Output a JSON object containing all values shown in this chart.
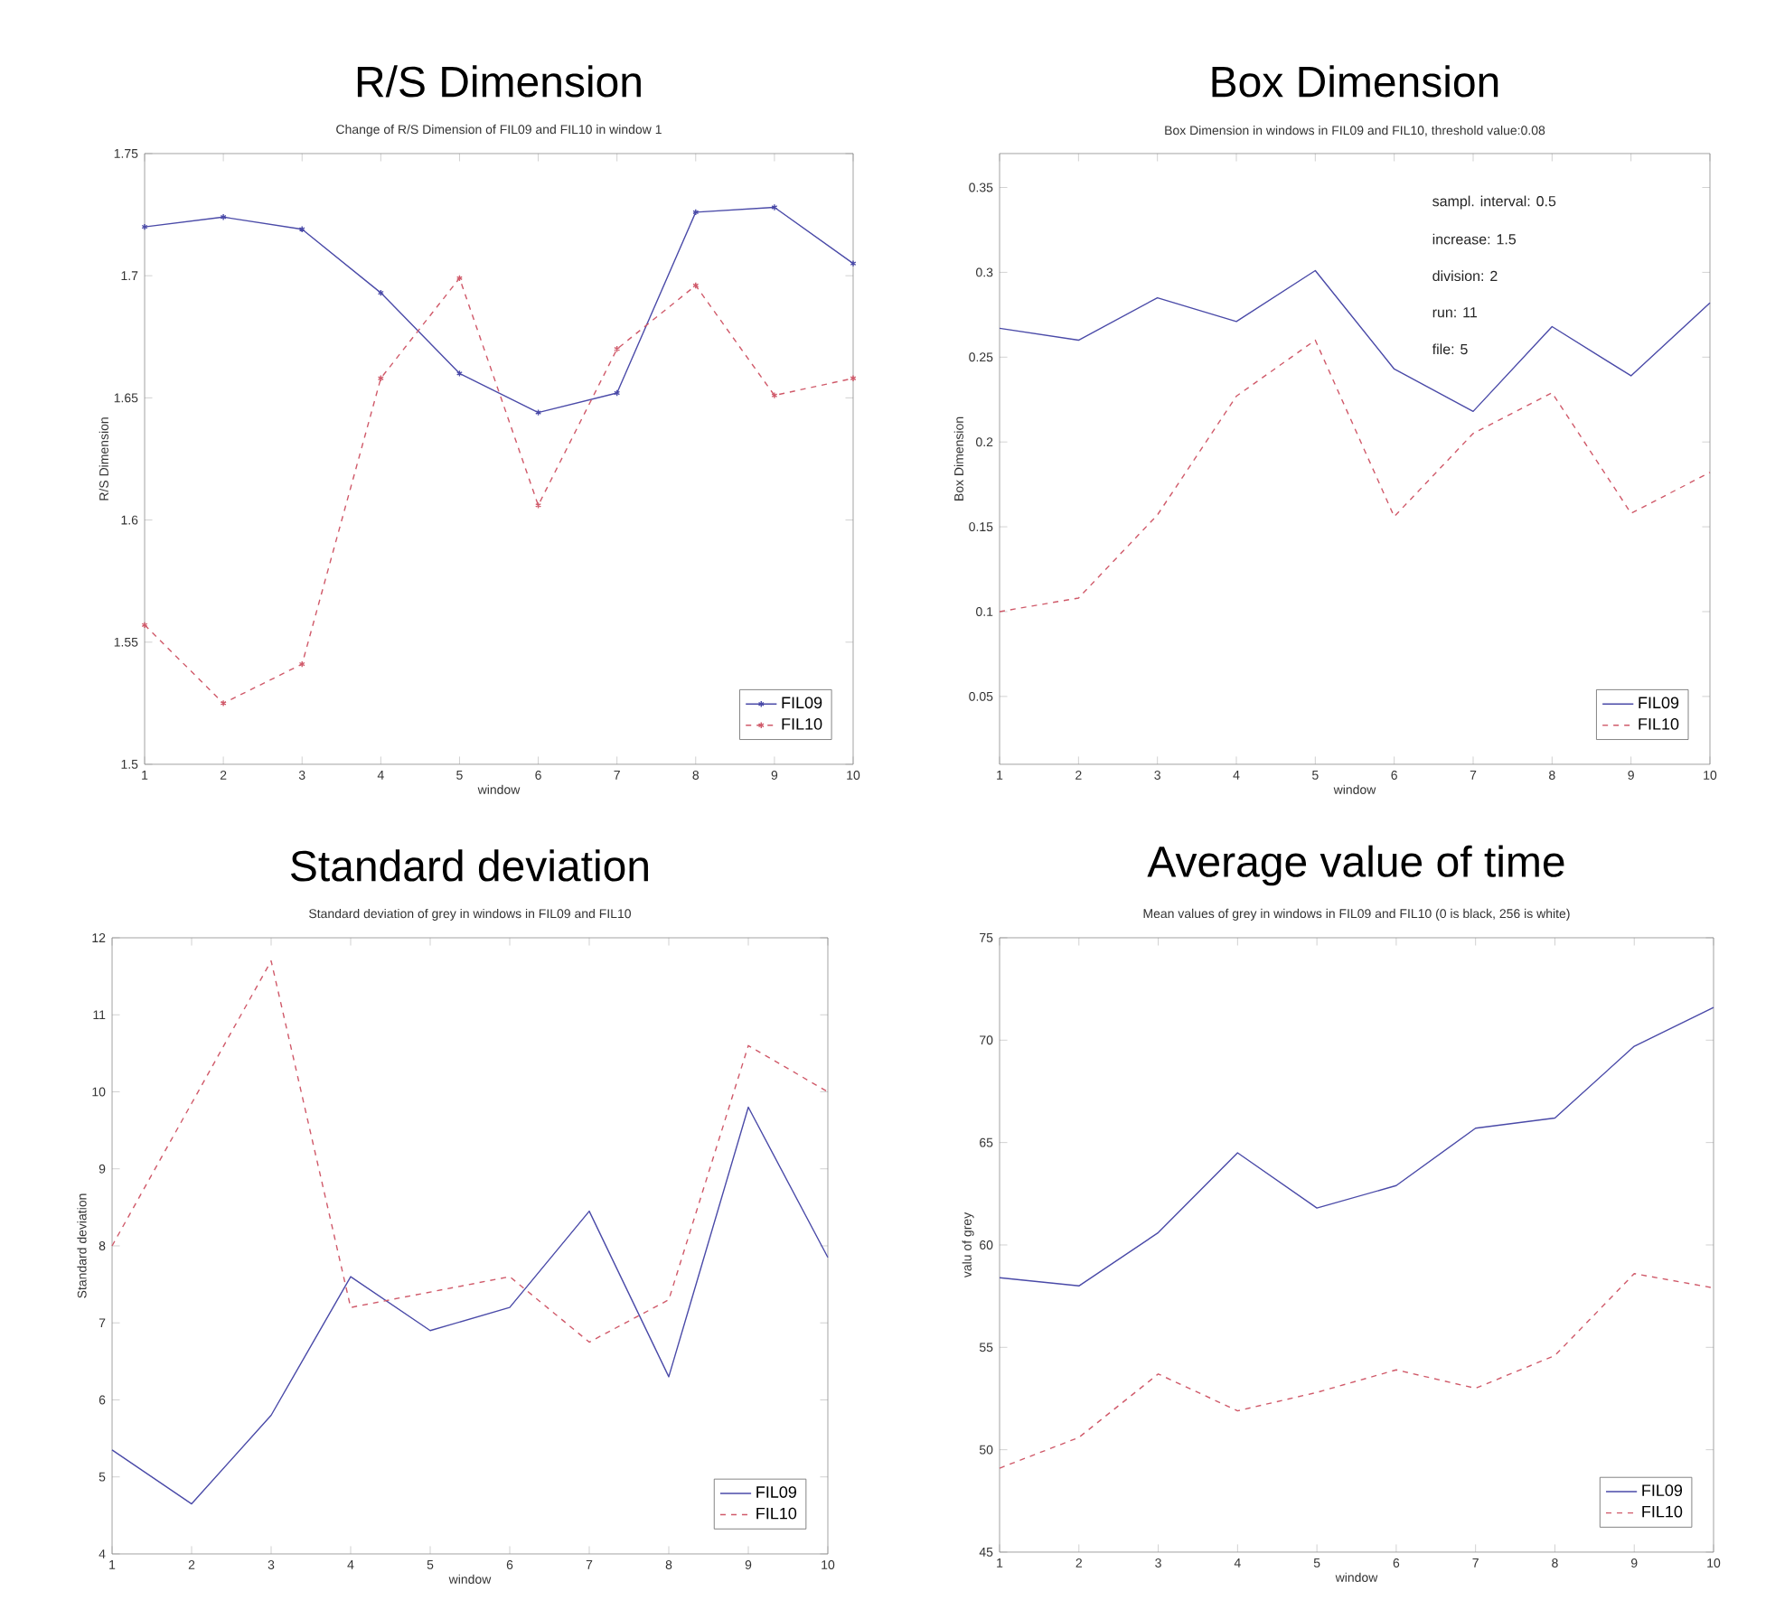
{
  "chart_data": [
    {
      "type": "line",
      "title": "R/S Dimension",
      "subtitle": "Change of R/S Dimension of FIL09 and FIL10 in window 1",
      "xlabel": "window",
      "ylabel": "R/S Dimension",
      "x": [
        1,
        2,
        3,
        4,
        5,
        6,
        7,
        8,
        9,
        10
      ],
      "xlim": [
        1,
        10
      ],
      "xticks": [
        1,
        2,
        3,
        4,
        5,
        6,
        7,
        8,
        9,
        10
      ],
      "ylim": [
        1.5,
        1.75
      ],
      "yticks": [
        1.5,
        1.55,
        1.6,
        1.65,
        1.7,
        1.75
      ],
      "legend": "bottom right",
      "marker": "cross",
      "series": [
        {
          "name": "FIL09",
          "color": "#4a4aa8",
          "line_style": "solid",
          "values": [
            1.72,
            1.724,
            1.719,
            1.693,
            1.66,
            1.644,
            1.652,
            1.726,
            1.728,
            1.705
          ]
        },
        {
          "name": "FIL10",
          "color": "#d05a6a",
          "line_style": "dashed",
          "values": [
            1.557,
            1.525,
            1.541,
            1.658,
            1.699,
            1.606,
            1.67,
            1.696,
            1.651,
            1.658
          ]
        }
      ]
    },
    {
      "type": "line",
      "title": "Box Dimension",
      "subtitle": "Box Dimension in windows in FIL09 and FIL10, threshold value:0.08",
      "xlabel": "window",
      "ylabel": "Box Dimension",
      "x": [
        1,
        2,
        3,
        4,
        5,
        6,
        7,
        8,
        9,
        10
      ],
      "xlim": [
        1,
        10
      ],
      "xticks": [
        1,
        2,
        3,
        4,
        5,
        6,
        7,
        8,
        9,
        10
      ],
      "ylim": [
        0.01,
        0.37
      ],
      "yticks": [
        0.05,
        0.1,
        0.15,
        0.2,
        0.25,
        0.3,
        0.35
      ],
      "legend": "bottom right",
      "annotations": [
        "sampl. interval: 0.5",
        "increase: 1.5",
        "division: 2",
        "run: 11",
        "file: 5"
      ],
      "series": [
        {
          "name": "FIL09",
          "color": "#4a4aa8",
          "line_style": "solid",
          "values": [
            0.267,
            0.26,
            0.285,
            0.271,
            0.301,
            0.243,
            0.218,
            0.268,
            0.239,
            0.282
          ]
        },
        {
          "name": "FIL10",
          "color": "#d05a6a",
          "line_style": "dashed",
          "values": [
            0.1,
            0.108,
            0.157,
            0.227,
            0.26,
            0.156,
            0.205,
            0.229,
            0.158,
            0.182
          ]
        }
      ]
    },
    {
      "type": "line",
      "title": "Standard deviation",
      "subtitle": "Standard deviation of grey in windows  in FIL09 and FIL10",
      "xlabel": "window",
      "ylabel": "Standard deviation",
      "x": [
        1,
        2,
        3,
        4,
        5,
        6,
        7,
        8,
        9,
        10
      ],
      "xlim": [
        1,
        10
      ],
      "xticks": [
        1,
        2,
        3,
        4,
        5,
        6,
        7,
        8,
        9,
        10
      ],
      "ylim": [
        4,
        12
      ],
      "yticks": [
        4,
        5,
        6,
        7,
        8,
        9,
        10,
        11,
        12
      ],
      "legend": "bottom right",
      "series": [
        {
          "name": "FIL09",
          "color": "#4a4aa8",
          "line_style": "solid",
          "values": [
            5.35,
            4.65,
            5.8,
            7.6,
            6.9,
            7.2,
            8.45,
            6.3,
            9.8,
            7.85
          ]
        },
        {
          "name": "FIL10",
          "color": "#d05a6a",
          "line_style": "dashed",
          "values": [
            8.0,
            9.85,
            11.7,
            7.2,
            7.4,
            7.6,
            6.75,
            7.3,
            10.6,
            10.0
          ]
        }
      ]
    },
    {
      "type": "line",
      "title": "Average value of time",
      "subtitle": "Mean values of grey in windows in FIL09 and FIL10 (0 is black, 256 is white)",
      "xlabel": "window",
      "ylabel": "valu of grey",
      "x": [
        1,
        2,
        3,
        4,
        5,
        6,
        7,
        8,
        9,
        10
      ],
      "xlim": [
        1,
        10
      ],
      "xticks": [
        1,
        2,
        3,
        4,
        5,
        6,
        7,
        8,
        9,
        10
      ],
      "ylim": [
        45,
        75
      ],
      "yticks": [
        45,
        50,
        55,
        60,
        65,
        70,
        75
      ],
      "legend": "bottom right",
      "series": [
        {
          "name": "FIL09",
          "color": "#4a4aa8",
          "line_style": "solid",
          "values": [
            58.4,
            58.0,
            60.6,
            64.5,
            61.8,
            62.9,
            65.7,
            66.2,
            69.7,
            71.6
          ]
        },
        {
          "name": "FIL10",
          "color": "#d05a6a",
          "line_style": "dashed",
          "values": [
            49.1,
            50.6,
            53.7,
            51.9,
            52.8,
            53.9,
            53.0,
            54.6,
            58.6,
            57.9
          ]
        }
      ]
    }
  ]
}
